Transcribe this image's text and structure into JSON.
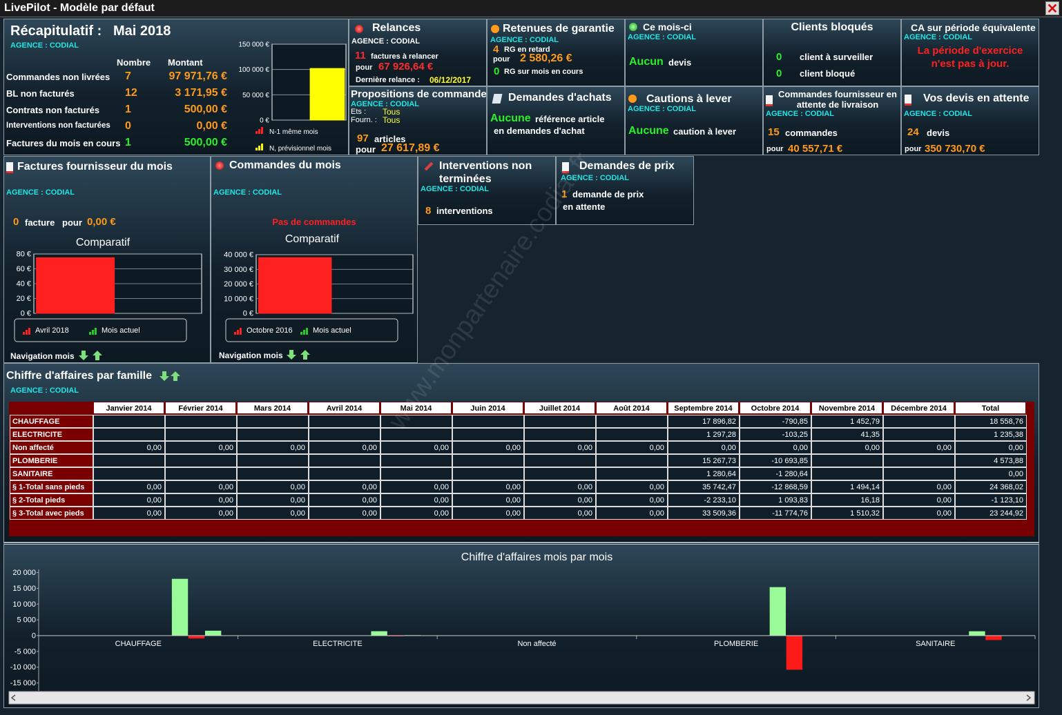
{
  "window": {
    "title": "LivePilot - Modèle par défaut",
    "watermark": "www.monpartenaire.codial.fr"
  },
  "recap": {
    "title": "Récapitulatif :",
    "month": "Mai 2018",
    "agency": "AGENCE : CODIAL",
    "headers": [
      "Nombre",
      "Montant"
    ],
    "rows": [
      {
        "label": "Commandes non livrées",
        "count": "7",
        "amount": "97 971,76 €"
      },
      {
        "label": "BL non facturés",
        "count": "12",
        "amount": "3 171,95 €"
      },
      {
        "label": "Contrats non facturés",
        "count": "1",
        "amount": "500,00 €"
      },
      {
        "label": "Interventions non facturées",
        "count": "0",
        "amount": "0,00 €"
      },
      {
        "label": "Factures du mois en cours",
        "count": "1",
        "amount": "500,00 €"
      }
    ]
  },
  "relances": {
    "title": "Relances",
    "agency": "AGENCE : CODIAL",
    "count": "11",
    "count_text": "factures à relancer",
    "pour": "pour",
    "amount": "67 926,64 €",
    "last_label": "Dernière relance :",
    "last_date": "06/12/2017"
  },
  "retenues": {
    "title": "Retenues de garantie",
    "agency": "AGENCE : CODIAL",
    "late_count": "4",
    "late_text": "RG en retard",
    "pour": "pour",
    "amount": "2 580,26 €",
    "month_count": "0",
    "month_text": "RG sur mois en cours"
  },
  "ce_mois": {
    "title": "Ce mois-ci",
    "agency": "AGENCE : CODIAL",
    "value": "Aucun",
    "text": "devis"
  },
  "clients": {
    "title": "Clients bloqués",
    "rows": [
      {
        "count": "0",
        "text": "client à surveiller"
      },
      {
        "count": "0",
        "text": "client bloqué"
      }
    ]
  },
  "ca_periode": {
    "title": "CA sur période équivalente",
    "agency": "AGENCE : CODIAL",
    "message": "La période d'exercice n'est pas à jour."
  },
  "propositions": {
    "title": "Propositions de commande",
    "agency": "AGENCE : CODIAL",
    "ets_label": "Ets :",
    "ets": "Tous",
    "fourn_label": "Fourn. :",
    "fourn": "Tous",
    "count": "97",
    "count_text": "articles",
    "pour": "pour",
    "amount": "27 617,89 €"
  },
  "achats": {
    "title": "Demandes d'achats",
    "value": "Aucune",
    "text": "référence article",
    "text2": "en demandes d'achat"
  },
  "cautions": {
    "title": "Cautions à lever",
    "agency": "AGENCE : CODIAL",
    "value": "Aucune",
    "text": "caution à lever"
  },
  "cmd_fourn": {
    "title": "Commandes fournisseur en attente de livraison",
    "agency": "AGENCE : CODIAL",
    "count": "15",
    "count_text": "commandes",
    "pour": "pour",
    "amount": "40 557,71 €"
  },
  "devis": {
    "title": "Vos devis en attente",
    "agency": "AGENCE : CODIAL",
    "count": "24",
    "count_text": "devis",
    "pour": "pour",
    "amount": "350 730,70 €"
  },
  "factures_fourn": {
    "title": "Factures fournisseur du mois",
    "agency": "AGENCE : CODIAL",
    "count": "0",
    "count_text": "facture",
    "pour": "pour",
    "amount": "0,00 €",
    "nav": "Navigation mois"
  },
  "commandes": {
    "title": "Commandes du mois",
    "agency": "AGENCE : CODIAL",
    "message": "Pas de commandes",
    "nav": "Navigation mois"
  },
  "interventions": {
    "title": "Interventions non terminées",
    "agency": "AGENCE : CODIAL",
    "count": "8",
    "count_text": "interventions"
  },
  "demandes_prix": {
    "title": "Demandes de prix",
    "agency": "AGENCE : CODIAL",
    "count": "1",
    "text": "demande de prix",
    "text2": "en attente"
  },
  "famille": {
    "title": "Chiffre d'affaires par famille",
    "agency": "AGENCE : CODIAL",
    "columns": [
      "Janvier 2014",
      "Février 2014",
      "Mars 2014",
      "Avril 2014",
      "Mai 2014",
      "Juin 2014",
      "Juillet 2014",
      "Août 2014",
      "Septembre 2014",
      "Octobre 2014",
      "Novembre 2014",
      "Décembre 2014",
      "Total"
    ],
    "rows": [
      {
        "name": "CHAUFFAGE",
        "cells": [
          null,
          null,
          null,
          null,
          null,
          null,
          null,
          null,
          "17 896,82",
          "-790,85",
          "1 452,79",
          null,
          "18 558,76"
        ]
      },
      {
        "name": "ELECTRICITE",
        "cells": [
          null,
          null,
          null,
          null,
          null,
          null,
          null,
          null,
          "1 297,28",
          "-103,25",
          "41,35",
          null,
          "1 235,38"
        ]
      },
      {
        "name": "Non affecté",
        "cells": [
          "0,00",
          "0,00",
          "0,00",
          "0,00",
          "0,00",
          "0,00",
          "0,00",
          "0,00",
          "0,00",
          "0,00",
          "0,00",
          "0,00",
          "0,00"
        ]
      },
      {
        "name": "PLOMBERIE",
        "cells": [
          null,
          null,
          null,
          null,
          null,
          null,
          null,
          null,
          "15 267,73",
          "-10 693,85",
          null,
          null,
          "4 573,88"
        ]
      },
      {
        "name": "SANITAIRE",
        "cells": [
          null,
          null,
          null,
          null,
          null,
          null,
          null,
          null,
          "1 280,64",
          "-1 280,64",
          null,
          null,
          "0,00"
        ]
      },
      {
        "name": "§ 1-Total sans pieds",
        "cells": [
          "0,00",
          "0,00",
          "0,00",
          "0,00",
          "0,00",
          "0,00",
          "0,00",
          "0,00",
          "35 742,47",
          "-12 868,59",
          "1 494,14",
          "0,00",
          "24 368,02"
        ]
      },
      {
        "name": "§ 2-Total pieds",
        "cells": [
          "0,00",
          "0,00",
          "0,00",
          "0,00",
          "0,00",
          "0,00",
          "0,00",
          "0,00",
          "-2 233,10",
          "1 093,83",
          "16,18",
          "0,00",
          "-1 123,10"
        ]
      },
      {
        "name": "§ 3-Total avec pieds",
        "cells": [
          "0,00",
          "0,00",
          "0,00",
          "0,00",
          "0,00",
          "0,00",
          "0,00",
          "0,00",
          "33 509,36",
          "-11 774,76",
          "1 510,32",
          "0,00",
          "23 244,92"
        ]
      }
    ]
  },
  "chart_data": [
    {
      "type": "bar",
      "ylim": [
        0,
        150000
      ],
      "grid": true,
      "yticks": [
        {
          "value": 0,
          "label": "0 €"
        },
        {
          "value": 50000,
          "label": "50 000 €"
        },
        {
          "value": 100000,
          "label": "100 000 €"
        },
        {
          "value": 150000,
          "label": "150 000 €"
        }
      ],
      "series": [
        {
          "name": "N-1 même mois",
          "color": "#ff2020",
          "values": [
            0
          ]
        },
        {
          "name": "N, prévisionnel mois",
          "color": "#ffff00",
          "values": [
            102000
          ]
        }
      ]
    },
    {
      "type": "bar",
      "title": "Comparatif",
      "ylim": [
        0,
        80
      ],
      "grid": true,
      "yticks": [
        {
          "value": 0,
          "label": "0 €"
        },
        {
          "value": 20,
          "label": "20 €"
        },
        {
          "value": 40,
          "label": "40 €"
        },
        {
          "value": 60,
          "label": "60 €"
        },
        {
          "value": 80,
          "label": "80 €"
        }
      ],
      "series": [
        {
          "name": "Avril 2018",
          "color": "#ff2020",
          "values": [
            75
          ]
        },
        {
          "name": "Mois actuel",
          "color": "#22cc22",
          "values": [
            0
          ]
        }
      ]
    },
    {
      "type": "bar",
      "title": "Comparatif",
      "ylim": [
        0,
        40000
      ],
      "grid": true,
      "yticks": [
        {
          "value": 0,
          "label": "0 €"
        },
        {
          "value": 10000,
          "label": "10 000 €"
        },
        {
          "value": 20000,
          "label": "20 000 €"
        },
        {
          "value": 30000,
          "label": "30 000 €"
        },
        {
          "value": 40000,
          "label": "40 000 €"
        }
      ],
      "series": [
        {
          "name": "Octobre 2016",
          "color": "#ff2020",
          "values": [
            38000
          ]
        },
        {
          "name": "Mois actuel",
          "color": "#22cc22",
          "values": [
            0
          ]
        }
      ]
    },
    {
      "type": "bar",
      "title": "Chiffre d'affaires mois par mois",
      "categories": [
        "CHAUFFAGE",
        "ELECTRICITE",
        "Non affecté",
        "PLOMBERIE",
        "SANITAIRE"
      ],
      "ylim": [
        -17500,
        21000
      ],
      "yticks": [
        {
          "value": -15000,
          "label": "-15 000"
        },
        {
          "value": -10000,
          "label": "-10 000"
        },
        {
          "value": -5000,
          "label": "-5 000"
        },
        0,
        {
          "value": 5000,
          "label": "5 000"
        },
        {
          "value": 10000,
          "label": "10 000"
        },
        {
          "value": 15000,
          "label": "15 000"
        },
        {
          "value": 20000,
          "label": "20 000"
        }
      ],
      "series": [
        {
          "color": "#98fb98",
          "values": [
            null,
            null,
            0,
            null,
            null
          ]
        },
        {
          "color": "#ff1a1a",
          "values": [
            null,
            null,
            0,
            null,
            null
          ]
        },
        {
          "color": "#98fb98",
          "values": [
            null,
            null,
            0,
            null,
            null
          ]
        },
        {
          "color": "#ff1a1a",
          "values": [
            null,
            null,
            0,
            null,
            null
          ]
        },
        {
          "color": "#98fb98",
          "values": [
            null,
            null,
            0,
            null,
            null
          ]
        },
        {
          "color": "#ff1a1a",
          "values": [
            null,
            null,
            0,
            null,
            null
          ]
        },
        {
          "color": "#98fb98",
          "values": [
            null,
            null,
            0,
            null,
            null
          ]
        },
        {
          "color": "#ff1a1a",
          "values": [
            null,
            null,
            0,
            null,
            null
          ]
        },
        {
          "color": "#98fb98",
          "values": [
            17896.82,
            1297.28,
            0,
            15267.73,
            1280.64
          ]
        },
        {
          "color": "#ff1a1a",
          "values": [
            -790.85,
            -103.25,
            0,
            -10693.85,
            -1280.64
          ]
        },
        {
          "color": "#98fb98",
          "values": [
            1452.79,
            41.35,
            0,
            null,
            null
          ]
        },
        {
          "color": "#ff1a1a",
          "values": [
            null,
            null,
            0,
            null,
            null
          ]
        }
      ]
    }
  ]
}
